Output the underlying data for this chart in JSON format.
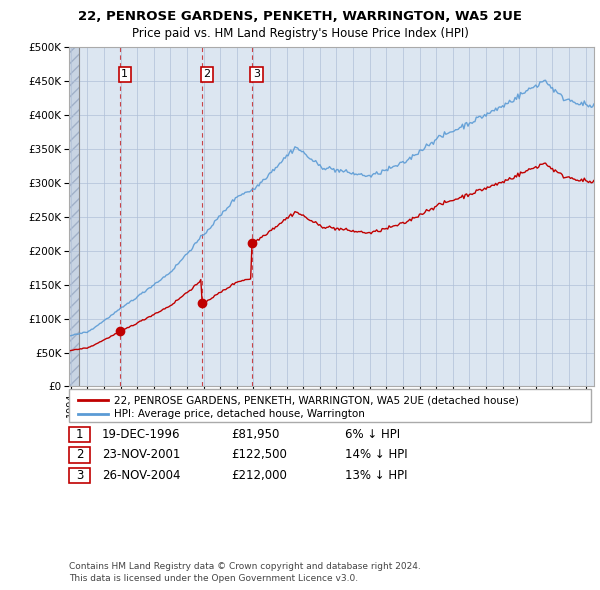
{
  "title1": "22, PENROSE GARDENS, PENKETH, WARRINGTON, WA5 2UE",
  "title2": "Price paid vs. HM Land Registry's House Price Index (HPI)",
  "ylim": [
    0,
    500000
  ],
  "yticks": [
    0,
    50000,
    100000,
    150000,
    200000,
    250000,
    300000,
    350000,
    400000,
    450000,
    500000
  ],
  "sale_times": [
    1996.96,
    2001.9,
    2004.9
  ],
  "sale_prices": [
    81950,
    122500,
    212000
  ],
  "sale_labels": [
    "1",
    "2",
    "3"
  ],
  "sale_below_hpi": [
    0.06,
    0.14,
    0.13
  ],
  "hpi_color": "#5b9bd5",
  "price_color": "#c00000",
  "dot_color": "#c00000",
  "vline_color": "#c00000",
  "plot_bg": "#dce6f1",
  "hatch_bg": "#c8d4e3",
  "grid_color": "#b0c0d8",
  "legend_entries": [
    "22, PENROSE GARDENS, PENKETH, WARRINGTON, WA5 2UE (detached house)",
    "HPI: Average price, detached house, Warrington"
  ],
  "table_rows": [
    [
      "1",
      "19-DEC-1996",
      "£81,950",
      "6% ↓ HPI"
    ],
    [
      "2",
      "23-NOV-2001",
      "£122,500",
      "14% ↓ HPI"
    ],
    [
      "3",
      "26-NOV-2004",
      "£212,000",
      "13% ↓ HPI"
    ]
  ],
  "footnote": "Contains HM Land Registry data © Crown copyright and database right 2024.\nThis data is licensed under the Open Government Licence v3.0."
}
